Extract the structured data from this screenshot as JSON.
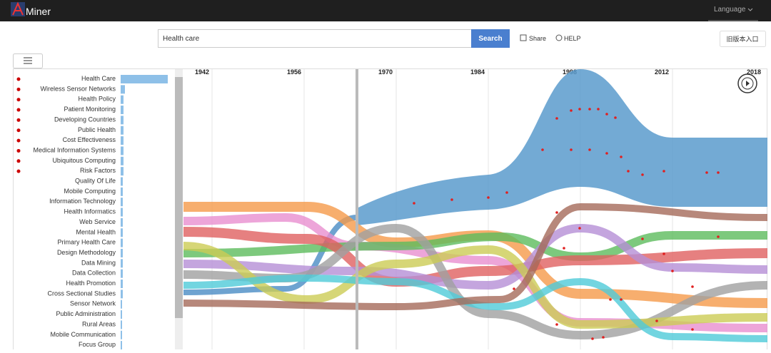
{
  "header": {
    "logo": "Miner",
    "language": "Language"
  },
  "search": {
    "query": "Health care",
    "button": "Search",
    "share": "Share",
    "help": "HELP",
    "old_version": "旧版本入口"
  },
  "topics": {
    "names": [
      "Health Care",
      "Wireless Sensor Networks",
      "Health Policy",
      "Patient Monitoring",
      "Developing Countries",
      "Public Health",
      "Cost Effectiveness",
      "Medical Information Systems",
      "Ubiquitous Computing",
      "Risk Factors",
      "Quality Of Life",
      "Mobile Computing",
      "Information Technology",
      "Health Informatics",
      "Web Service",
      "Mental Health",
      "Primary Health Care",
      "Design Methodology",
      "Data Mining",
      "Data Collection",
      "Health Promotion",
      "Cross Sectional Studies",
      "Sensor Network",
      "Public Administration",
      "Rural Areas",
      "Mobile Communication",
      "Focus Group"
    ],
    "values": [
      66,
      6,
      4,
      4,
      4,
      4,
      4,
      4,
      4,
      4,
      3,
      3,
      3,
      3,
      3,
      3,
      3,
      3,
      3,
      3,
      3,
      3,
      2,
      2,
      2,
      2,
      2
    ]
  },
  "timeline": {
    "years": [
      "1942",
      "1956",
      "1970",
      "1984",
      "1998",
      "2012",
      "2018"
    ]
  }
}
